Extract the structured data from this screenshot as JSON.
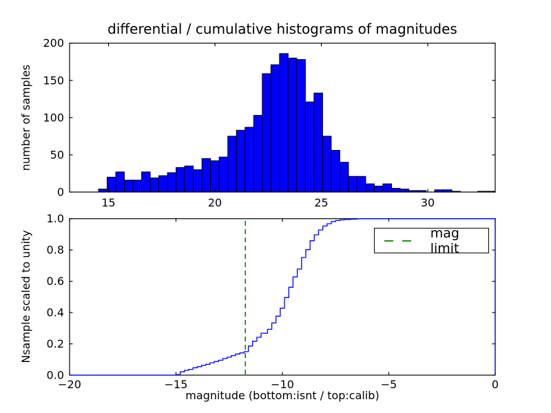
{
  "figure": {
    "title": "differential / cumulative histograms of magnitudes",
    "background_color": "#ffffff",
    "axis_color": "#000000"
  },
  "chart_data": [
    {
      "type": "bar",
      "subtype": "histogram-differential",
      "title": "differential / cumulative histograms of magnitudes",
      "xlabel": "",
      "ylabel": "number of samples",
      "xlim": [
        13.17,
        33.17
      ],
      "ylim": [
        0,
        200
      ],
      "xticks": [
        15,
        20,
        25,
        30
      ],
      "xtick_labels": [
        "15",
        "20",
        "25",
        "30"
      ],
      "yticks": [
        0,
        50,
        100,
        150,
        200
      ],
      "ytick_labels": [
        "0",
        "50",
        "100",
        "150",
        "200"
      ],
      "grid": false,
      "bar_color": "#0000ff",
      "bar_edge_color": "#000000",
      "bin_start": 14.53,
      "bin_width": 0.405,
      "counts": [
        4,
        20,
        27,
        16,
        16,
        27,
        19,
        22,
        26,
        33,
        35,
        30,
        45,
        42,
        47,
        75,
        83,
        87,
        103,
        159,
        171,
        186,
        180,
        178,
        121,
        133,
        75,
        56,
        40,
        21,
        21,
        11,
        8,
        11,
        5,
        4,
        2,
        2,
        0,
        3,
        3,
        1,
        0,
        0,
        1,
        1
      ]
    },
    {
      "type": "line",
      "subtype": "histogram-cumulative-step",
      "xlabel": "magnitude (bottom:isnt / top:calib)",
      "ylabel": "Nsample scaled to unity",
      "xlim": [
        -20,
        0
      ],
      "ylim": [
        0,
        1
      ],
      "xticks": [
        -20,
        -15,
        -10,
        -5,
        0
      ],
      "xtick_labels": [
        "−20",
        "−15",
        "−10",
        "−5",
        "0"
      ],
      "yticks": [
        0,
        0.2,
        0.4,
        0.6,
        0.8,
        1.0
      ],
      "ytick_labels": [
        "0.0",
        "0.2",
        "0.4",
        "0.6",
        "0.8",
        "1.0"
      ],
      "grid": false,
      "line_color": "#0000ff",
      "steps": [
        [
          -20,
          0
        ],
        [
          -15,
          0.004
        ],
        [
          -14.8,
          0.021
        ],
        [
          -14.6,
          0.031
        ],
        [
          -14.4,
          0.037
        ],
        [
          -14.2,
          0.047
        ],
        [
          -14,
          0.054
        ],
        [
          -13.8,
          0.063
        ],
        [
          -13.6,
          0.069
        ],
        [
          -13.4,
          0.079
        ],
        [
          -13.2,
          0.087
        ],
        [
          -13,
          0.095
        ],
        [
          -12.8,
          0.106
        ],
        [
          -12.6,
          0.115
        ],
        [
          -12.4,
          0.125
        ],
        [
          -12.2,
          0.135
        ],
        [
          -12,
          0.142
        ],
        [
          -11.8,
          0.15
        ],
        [
          -11.6,
          0.186
        ],
        [
          -11.4,
          0.217
        ],
        [
          -11.2,
          0.242
        ],
        [
          -11,
          0.268
        ],
        [
          -10.7,
          0.293
        ],
        [
          -10.5,
          0.334
        ],
        [
          -10.3,
          0.377
        ],
        [
          -10.1,
          0.428
        ],
        [
          -9.9,
          0.496
        ],
        [
          -9.7,
          0.562
        ],
        [
          -9.5,
          0.628
        ],
        [
          -9.3,
          0.678
        ],
        [
          -9.1,
          0.752
        ],
        [
          -8.9,
          0.802
        ],
        [
          -8.7,
          0.859
        ],
        [
          -8.5,
          0.897
        ],
        [
          -8.3,
          0.928
        ],
        [
          -8.1,
          0.953
        ],
        [
          -7.9,
          0.968
        ],
        [
          -7.7,
          0.982
        ],
        [
          -7.5,
          0.988
        ],
        [
          -7.3,
          0.992
        ],
        [
          -7.1,
          0.995
        ],
        [
          -6.8,
          0.997
        ],
        [
          -6.5,
          0.999
        ],
        [
          -6.2,
          1.0
        ]
      ],
      "curve_end": {
        "x": 0,
        "drops_to": 0
      },
      "mag_limit": {
        "x": -11.74,
        "color": "#008000",
        "linestyle": "dashed",
        "label": "mag limit"
      },
      "legend": {
        "label": "mag limit",
        "location": "upper right"
      }
    }
  ]
}
